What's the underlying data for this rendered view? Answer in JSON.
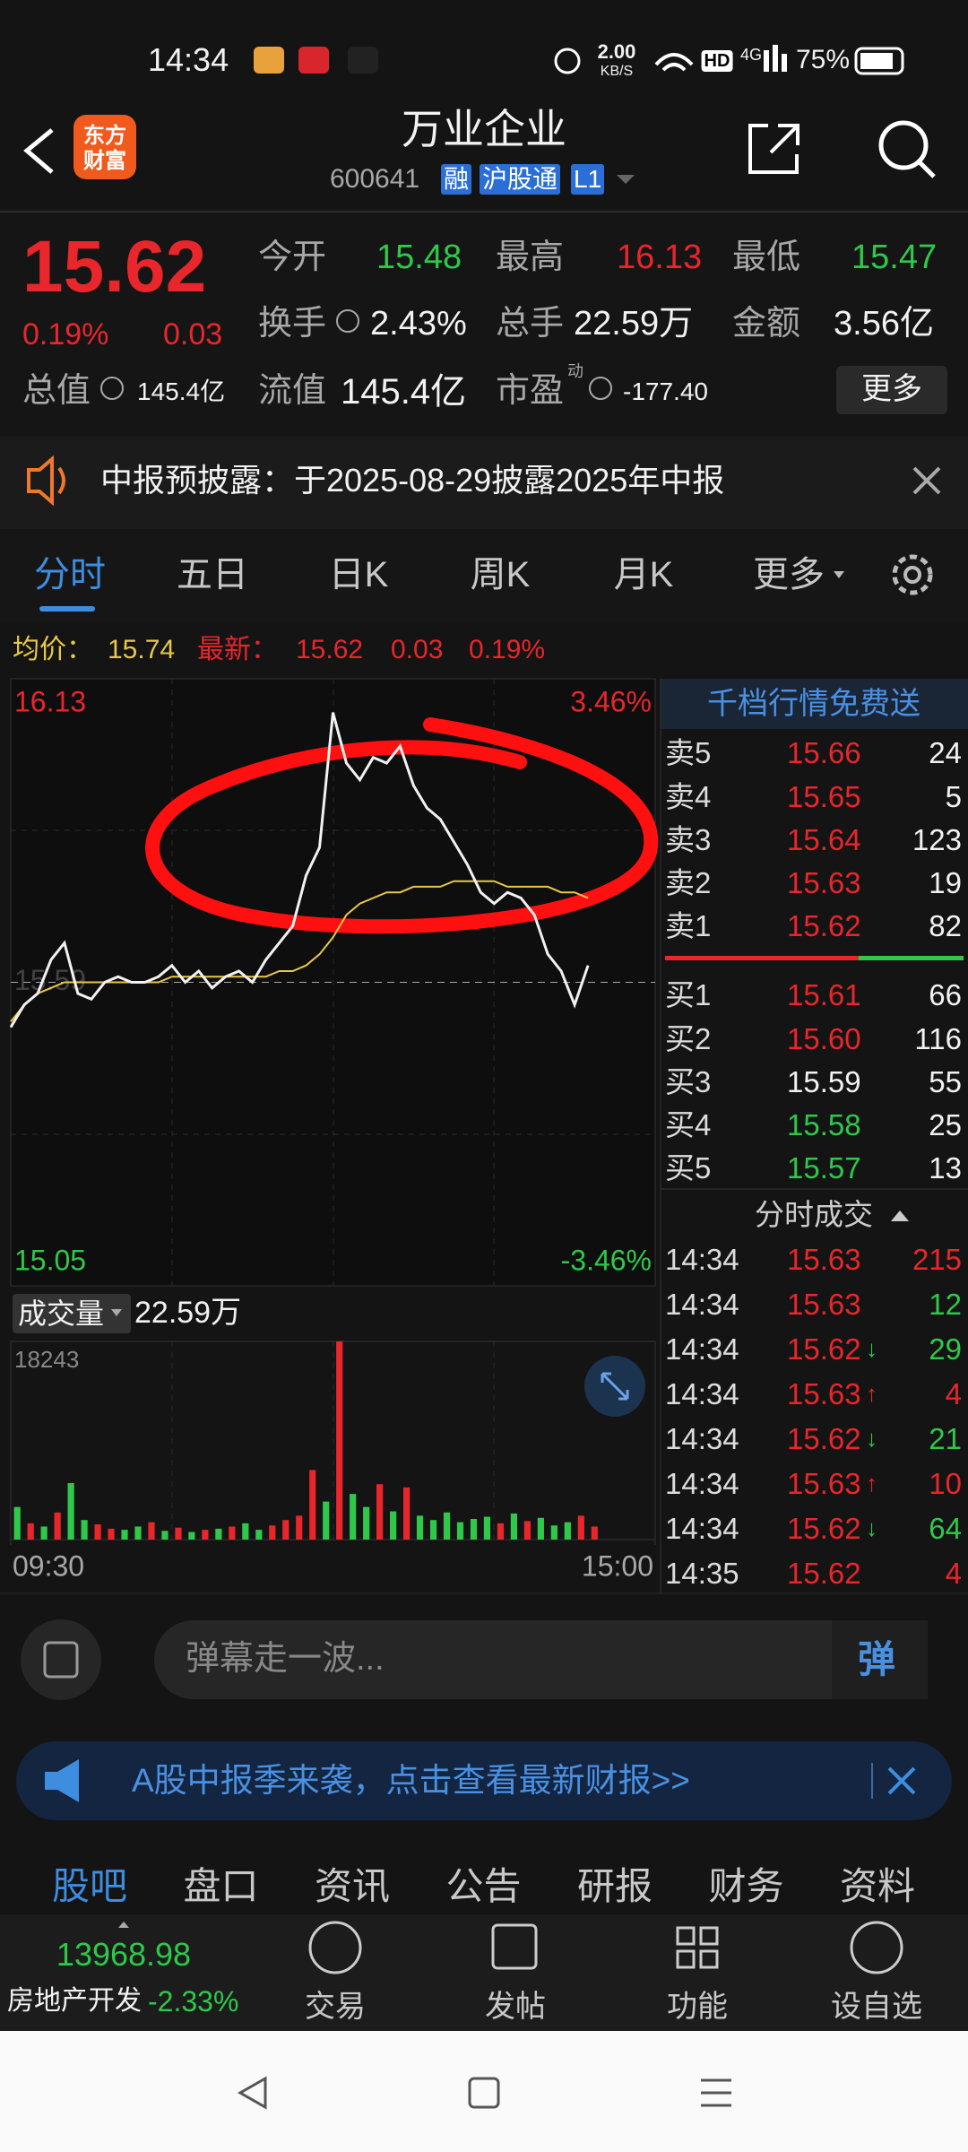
{
  "status_bar": {
    "time": "14:34",
    "speed": "2.00",
    "speed_unit": "KB/S",
    "hd": "HD",
    "network": "4G",
    "battery": "75%"
  },
  "header": {
    "logo": [
      "东方",
      "财富"
    ],
    "title": "万业企业",
    "code": "600641",
    "tags": [
      "融",
      "沪股通",
      "L1"
    ]
  },
  "quote": {
    "price": "15.62",
    "change_pct": "0.19%",
    "change": "0.03",
    "fields": [
      {
        "label": "今开",
        "value": "15.48",
        "color": "#2fc84a"
      },
      {
        "label": "最高",
        "value": "16.13",
        "color": "#e8262c"
      },
      {
        "label": "最低",
        "value": "15.47",
        "color": "#2fc84a"
      },
      {
        "label": "换手",
        "value": "2.43%"
      },
      {
        "label": "总手",
        "value": "22.59万"
      },
      {
        "label": "金额",
        "value": "3.56亿"
      },
      {
        "label": "总值",
        "value": "145.4亿"
      },
      {
        "label": "流值",
        "value": "145.4亿"
      },
      {
        "label": "市盈",
        "sup": "动",
        "value": "-177.40"
      }
    ],
    "more": "更多"
  },
  "notice": {
    "text": "中报预披露：于2025-08-29披露2025年中报"
  },
  "tabs": [
    "分时",
    "五日",
    "日K",
    "周K",
    "月K",
    "更多"
  ],
  "chart_data": [
    {
      "type": "line",
      "avg": "15.74",
      "last": "15.62",
      "last_change": "0.03",
      "last_pct": "0.19%",
      "x": [
        0,
        5,
        10,
        15,
        20,
        25,
        30,
        35,
        40,
        45,
        50,
        55,
        60,
        65,
        70,
        75,
        80,
        85,
        90,
        95,
        100,
        105,
        110,
        115,
        120,
        125,
        130,
        135,
        140,
        145,
        150,
        155,
        160,
        165,
        170,
        175,
        180,
        185,
        190,
        195,
        200,
        205,
        210,
        215
      ],
      "xlim": [
        0,
        240
      ],
      "xticks": [
        {
          "value": 0,
          "label": "09:30"
        },
        {
          "value": 240,
          "label": "15:00"
        }
      ],
      "ylim": [
        15.05,
        16.13
      ],
      "yticks": [
        15.05,
        15.59,
        16.13
      ],
      "ytick_colors": [
        "#2fc84a",
        "#777777",
        "#e8262c"
      ],
      "y2lim": [
        -3.46,
        3.46
      ],
      "y2ticks": [
        {
          "value": -3.46,
          "label": "-3.46%"
        },
        {
          "value": 3.46,
          "label": "3.46%"
        }
      ],
      "y2tick_colors": [
        "#2fc84a",
        "#e8262c"
      ],
      "series": [
        {
          "name": "最新：",
          "color": "#f2f2f2",
          "values": [
            15.51,
            15.55,
            15.57,
            15.63,
            15.66,
            15.57,
            15.56,
            15.59,
            15.6,
            15.59,
            15.59,
            15.6,
            15.62,
            15.59,
            15.61,
            15.58,
            15.6,
            15.61,
            15.59,
            15.63,
            15.66,
            15.69,
            15.78,
            15.83,
            16.07,
            15.98,
            15.95,
            15.99,
            15.98,
            16.01,
            15.94,
            15.9,
            15.88,
            15.84,
            15.8,
            15.75,
            15.73,
            15.75,
            15.74,
            15.71,
            15.64,
            15.61,
            15.55,
            15.62
          ]
        },
        {
          "name": "均价：",
          "color": "#e6c84a",
          "values": [
            15.52,
            15.55,
            15.57,
            15.58,
            15.59,
            15.59,
            15.59,
            15.59,
            15.59,
            15.59,
            15.59,
            15.59,
            15.6,
            15.6,
            15.6,
            15.6,
            15.6,
            15.6,
            15.6,
            15.6,
            15.61,
            15.61,
            15.62,
            15.64,
            15.67,
            15.71,
            15.73,
            15.74,
            15.75,
            15.75,
            15.76,
            15.76,
            15.76,
            15.77,
            15.77,
            15.77,
            15.77,
            15.76,
            15.76,
            15.76,
            15.76,
            15.75,
            15.75,
            15.74
          ]
        }
      ]
    },
    {
      "type": "bar",
      "label": "成交量",
      "total": "22.59万",
      "x": [
        0,
        5,
        10,
        15,
        20,
        25,
        30,
        35,
        40,
        45,
        50,
        55,
        60,
        65,
        70,
        75,
        80,
        85,
        90,
        95,
        100,
        105,
        110,
        115,
        120,
        125,
        130,
        135,
        140,
        145,
        150,
        155,
        160,
        165,
        170,
        175,
        180,
        185,
        190,
        195,
        200,
        205,
        210,
        215
      ],
      "xlim": [
        0,
        240
      ],
      "ylim": [
        0,
        18243
      ],
      "yticks": [
        18243
      ],
      "values": [
        3000,
        1500,
        1200,
        2500,
        5200,
        1800,
        1400,
        1000,
        900,
        1200,
        1600,
        800,
        1100,
        700,
        900,
        1000,
        1200,
        1500,
        900,
        1300,
        1800,
        2200,
        6400,
        3500,
        18243,
        4200,
        3000,
        5100,
        2600,
        4800,
        2200,
        1800,
        2500,
        1600,
        1900,
        2100,
        1500,
        2400,
        1700,
        2000,
        1300,
        1600,
        2200,
        1200
      ],
      "colors": [
        "#2fc84a",
        "#e8262c",
        "#2fc84a",
        "#e8262c",
        "#2fc84a",
        "#2fc84a",
        "#e8262c",
        "#e8262c",
        "#2fc84a",
        "#2fc84a",
        "#e8262c",
        "#2fc84a",
        "#e8262c",
        "#2fc84a",
        "#e8262c",
        "#2fc84a",
        "#e8262c",
        "#2fc84a",
        "#2fc84a",
        "#e8262c",
        "#e8262c",
        "#e8262c",
        "#e8262c",
        "#2fc84a",
        "#e8262c",
        "#2fc84a",
        "#2fc84a",
        "#e8262c",
        "#2fc84a",
        "#e8262c",
        "#2fc84a",
        "#2fc84a",
        "#2fc84a",
        "#2fc84a",
        "#2fc84a",
        "#2fc84a",
        "#e8262c",
        "#2fc84a",
        "#e8262c",
        "#2fc84a",
        "#2fc84a",
        "#2fc84a",
        "#e8262c",
        "#e8262c"
      ]
    }
  ],
  "order_book": {
    "title": "千档行情免费送",
    "asks": [
      {
        "label": "卖5",
        "price": "15.66",
        "volume": "24",
        "color": "#e8262c"
      },
      {
        "label": "卖4",
        "price": "15.65",
        "volume": "5",
        "color": "#e8262c"
      },
      {
        "label": "卖3",
        "price": "15.64",
        "volume": "123",
        "color": "#e8262c"
      },
      {
        "label": "卖2",
        "price": "15.63",
        "volume": "19",
        "color": "#e8262c"
      },
      {
        "label": "卖1",
        "price": "15.62",
        "volume": "82",
        "color": "#e8262c"
      }
    ],
    "bids": [
      {
        "label": "买1",
        "price": "15.61",
        "volume": "66",
        "color": "#e8262c"
      },
      {
        "label": "买2",
        "price": "15.60",
        "volume": "116",
        "color": "#e8262c"
      },
      {
        "label": "买3",
        "price": "15.59",
        "volume": "55",
        "color": "#f2f2f2"
      },
      {
        "label": "买4",
        "price": "15.58",
        "volume": "25",
        "color": "#2fc84a"
      },
      {
        "label": "买5",
        "price": "15.57",
        "volume": "13",
        "color": "#2fc84a"
      }
    ]
  },
  "trades": {
    "title": "分时成交",
    "rows": [
      {
        "time": "14:34",
        "price": "15.63",
        "volume": "215",
        "color": "#e8262c"
      },
      {
        "time": "14:34",
        "price": "15.63",
        "volume": "12",
        "color": "#2fc84a"
      },
      {
        "time": "14:34",
        "price": "15.62",
        "arrow": "↓",
        "volume": "29",
        "color": "#2fc84a"
      },
      {
        "time": "14:34",
        "price": "15.63",
        "arrow": "↑",
        "volume": "4",
        "color": "#e8262c"
      },
      {
        "time": "14:34",
        "price": "15.62",
        "arrow": "↓",
        "volume": "21",
        "color": "#2fc84a"
      },
      {
        "time": "14:34",
        "price": "15.63",
        "arrow": "↑",
        "volume": "10",
        "color": "#e8262c"
      },
      {
        "time": "14:34",
        "price": "15.62",
        "arrow": "↓",
        "volume": "64",
        "color": "#2fc84a"
      },
      {
        "time": "14:35",
        "price": "15.62",
        "volume": "4",
        "color": "#e8262c"
      }
    ]
  },
  "danmaku": {
    "placeholder": "弹幕走一波...",
    "button": "弹"
  },
  "banner": {
    "text": "A股中报季来袭，点击查看最新财报>>"
  },
  "sub_tabs": [
    "股吧",
    "盘口",
    "资讯",
    "公告",
    "研报",
    "财务",
    "资料"
  ],
  "bottom_nav": {
    "index_value": "13968.98",
    "index_name": "房地产开发",
    "index_change": "-2.33%",
    "items": [
      "交易",
      "发帖",
      "功能",
      "设自选"
    ]
  }
}
